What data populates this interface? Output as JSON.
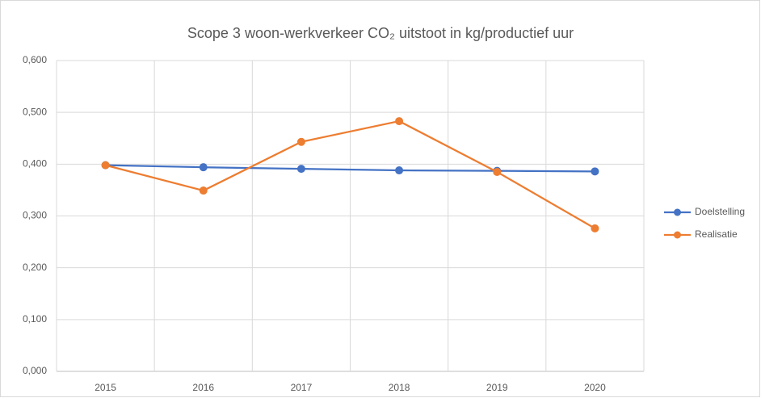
{
  "chart_data": {
    "type": "line",
    "title": "Scope 3 woon-werkverkeer CO₂ uitstoot in kg/productief uur",
    "categories": [
      "2015",
      "2016",
      "2017",
      "2018",
      "2019",
      "2020"
    ],
    "series": [
      {
        "name": "Doelstelling",
        "color": "#4472c4",
        "values": [
          0.398,
          0.394,
          0.391,
          0.388,
          0.387,
          0.386
        ]
      },
      {
        "name": "Realisatie",
        "color": "#ed7d31",
        "values": [
          0.398,
          0.349,
          0.443,
          0.483,
          0.385,
          0.276
        ]
      }
    ],
    "ylim": [
      0,
      0.6
    ],
    "yticks": [
      {
        "value": 0,
        "label": "0,000"
      },
      {
        "value": 0.1,
        "label": "0,100"
      },
      {
        "value": 0.2,
        "label": "0,200"
      },
      {
        "value": 0.3,
        "label": "0,300"
      },
      {
        "value": 0.4,
        "label": "0,400"
      },
      {
        "value": 0.5,
        "label": "0,500"
      },
      {
        "value": 0.6,
        "label": "0,600"
      }
    ],
    "grid": true,
    "legend": "right"
  }
}
